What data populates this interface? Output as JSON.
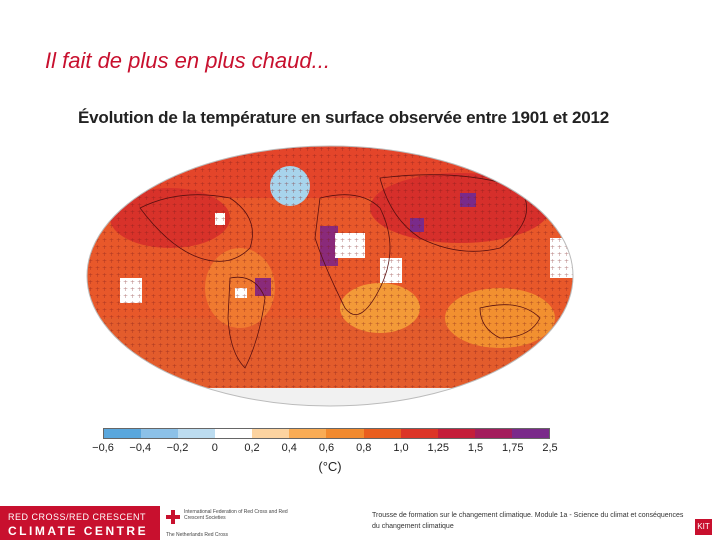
{
  "slide": {
    "title": "Il fait de plus en plus chaud..."
  },
  "map": {
    "title": "Évolution de la température en surface observée entre 1901 et 2012",
    "legend": {
      "ticks": [
        "−0,6",
        "−0,4",
        "−0,2",
        "0",
        "0,2",
        "0,4",
        "0,6",
        "0,8",
        "1,0",
        "1,25",
        "1,5",
        "1,75",
        "2,5"
      ],
      "colors": [
        "#5aa7dd",
        "#8cc1e8",
        "#bcdcf0",
        "#ffffff",
        "#fcd3a0",
        "#f9ac55",
        "#f28a2e",
        "#e95e1f",
        "#dc3527",
        "#c41e3a",
        "#a31d5c",
        "#7a2a8a"
      ],
      "unit": "(°C)"
    }
  },
  "footer": {
    "org_line1": "RED CROSS/RED CRESCENT",
    "org_line2": "CLIMATE CENTRE",
    "ifrc_name": "International Federation of Red Cross and Red Crescent Societies",
    "ifrc_tagline": "The Netherlands Red Cross",
    "caption": "Trousse de formation sur le changement climatique. Module 1a - Science du climat et conséquences du changement climatique",
    "badge": "KIT"
  }
}
